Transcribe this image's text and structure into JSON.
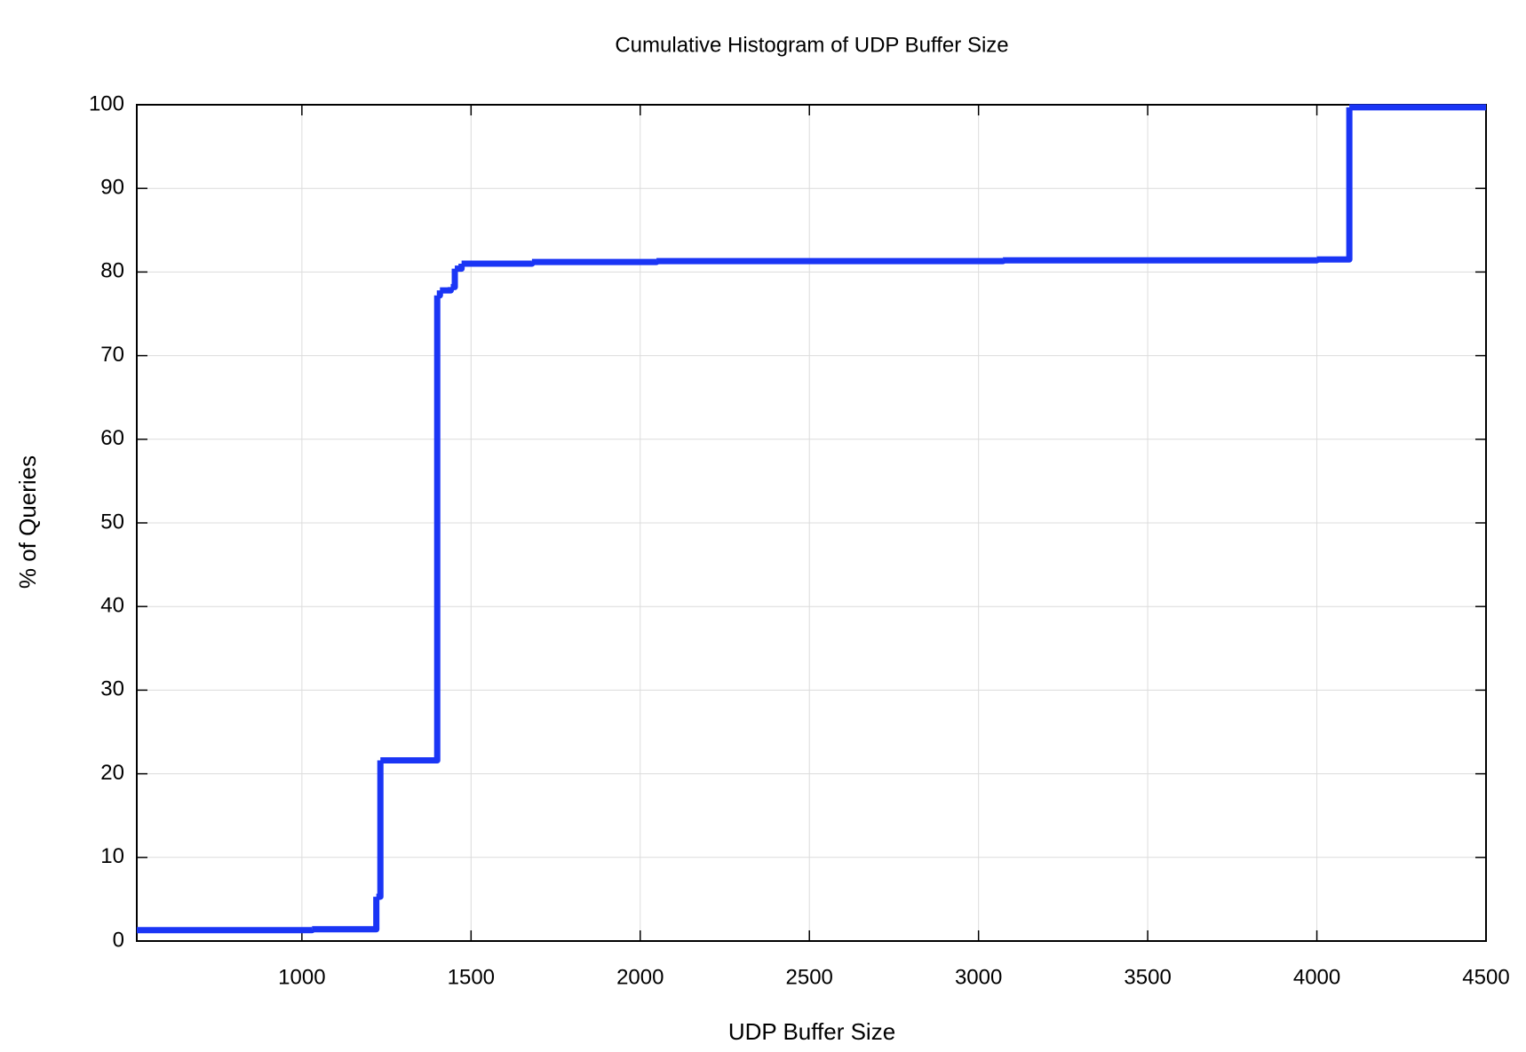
{
  "chart_data": {
    "type": "line",
    "step": "post",
    "title": "Cumulative Histogram of UDP Buffer Size",
    "xlabel": "UDP Buffer Size",
    "ylabel": "% of Queries",
    "x": [
      512,
      1030,
      1220,
      1232,
      1400,
      1408,
      1440,
      1452,
      1472,
      1680,
      2048,
      3072,
      4000,
      4096,
      4500
    ],
    "values": [
      1.3,
      1.4,
      5.3,
      21.6,
      77.2,
      77.8,
      78.2,
      80.4,
      81.0,
      81.2,
      81.3,
      81.4,
      81.5,
      99.7,
      99.7
    ],
    "color": "#1a35f5",
    "xlim": [
      512,
      4500
    ],
    "xticks": [
      1000,
      1500,
      2000,
      2500,
      3000,
      3500,
      4000,
      4500
    ],
    "ylim": [
      0,
      100
    ],
    "yticks": [
      0,
      10,
      20,
      30,
      40,
      50,
      60,
      70,
      80,
      90,
      100
    ],
    "grid": true
  }
}
